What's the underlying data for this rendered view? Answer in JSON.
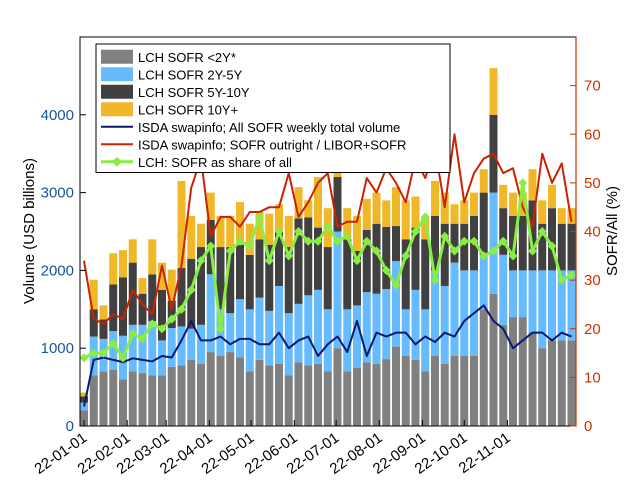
{
  "chart_data": {
    "type": "bar",
    "stacked": true,
    "x_tick_labels": [
      "22-01-01",
      "22-02-01",
      "22-03-01",
      "22-04-01",
      "22-05-01",
      "22-06-01",
      "22-07-01",
      "22-08-01",
      "22-09-01",
      "22-10-01",
      "22-11-01"
    ],
    "x_tick_index": [
      0,
      4.43,
      8.43,
      12.86,
      17.14,
      21.57,
      25.86,
      30.29,
      34.71,
      39.0,
      43.43
    ],
    "ylabel_left": "Volume (USD billions)",
    "ylabel_right": "SOFR/All (%)",
    "ylim_left": [
      0,
      5000
    ],
    "yticks_left": [
      0,
      1000,
      2000,
      3000,
      4000
    ],
    "ylim_right": [
      0,
      80
    ],
    "yticks_right": [
      0,
      10,
      20,
      30,
      40,
      50,
      60,
      70
    ],
    "colors": {
      "lt2y": "#808080",
      "y2_5": "#66bbff",
      "y5_10": "#404040",
      "y10p": "#f0b828",
      "weekly_total": "#0a1a6e",
      "outright_share": "#cc2200",
      "lch_share": "#88ee44",
      "left_axis": "#1a55a0",
      "right_axis": "#cc3300"
    },
    "series": [
      {
        "name": "LCH SOFR <2Y*",
        "color_key": "lt2y",
        "kind": "bar",
        "values": [
          200,
          650,
          700,
          720,
          600,
          700,
          680,
          650,
          650,
          760,
          780,
          850,
          800,
          950,
          900,
          950,
          880,
          700,
          850,
          780,
          800,
          650,
          820,
          780,
          800,
          700,
          1000,
          700,
          750,
          820,
          800,
          860,
          1020,
          900,
          850,
          700,
          900,
          800,
          900,
          900,
          900,
          1500,
          1700,
          1300,
          1400,
          1400,
          1200,
          1000,
          1100,
          1100,
          1100
        ]
      },
      {
        "name": "LCH SOFR 2Y-5Y",
        "color_key": "y2_5",
        "kind": "bar",
        "values": [
          100,
          500,
          420,
          500,
          560,
          600,
          620,
          700,
          450,
          500,
          500,
          400,
          500,
          1000,
          600,
          500,
          750,
          800,
          800,
          700,
          1000,
          800,
          750,
          900,
          950,
          800,
          1500,
          800,
          800,
          900,
          900,
          900,
          1100,
          600,
          900,
          800,
          1100,
          1000,
          1200,
          1100,
          1100,
          700,
          1300,
          900,
          600,
          600,
          800,
          1000,
          900,
          900,
          900
        ]
      },
      {
        "name": "LCH SOFR 5Y-10Y",
        "color_key": "y5_10",
        "kind": "bar",
        "values": [
          80,
          350,
          250,
          600,
          750,
          800,
          400,
          600,
          650,
          350,
          750,
          900,
          1000,
          700,
          800,
          850,
          700,
          700,
          750,
          850,
          700,
          850,
          1100,
          1000,
          800,
          800,
          700,
          900,
          700,
          800,
          900,
          800,
          450,
          900,
          800,
          900,
          700,
          800,
          500,
          600,
          700,
          800,
          1000,
          600,
          700,
          700,
          900,
          600,
          800,
          600,
          600
        ]
      },
      {
        "name": "LCH SOFR 10Y+",
        "color_key": "y10p",
        "kind": "bar",
        "values": [
          50,
          380,
          180,
          400,
          350,
          300,
          200,
          450,
          350,
          400,
          1120,
          550,
          300,
          350,
          400,
          400,
          550,
          400,
          350,
          400,
          350,
          400,
          400,
          220,
          650,
          500,
          200,
          400,
          450,
          400,
          400,
          340,
          500,
          500,
          400,
          300,
          450,
          400,
          250,
          300,
          300,
          300,
          600,
          300,
          300,
          300,
          400,
          300,
          300,
          200,
          200
        ]
      },
      {
        "name": "ISDA swapinfo; All SOFR weekly total volume",
        "color_key": "weekly_total",
        "kind": "line",
        "axis": "left",
        "values": [
          250,
          850,
          880,
          850,
          820,
          870,
          850,
          830,
          900,
          880,
          1100,
          1350,
          1100,
          1100,
          1150,
          1050,
          1120,
          1120,
          1050,
          1050,
          1200,
          1000,
          1100,
          1150,
          900,
          1050,
          1150,
          950,
          1350,
          900,
          1200,
          1150,
          1200,
          1200,
          1050,
          1150,
          1080,
          1200,
          1150,
          1350,
          1450,
          1550,
          1350,
          1250,
          1000,
          1100,
          1200,
          1200,
          1100,
          1200,
          1150
        ]
      },
      {
        "name": "ISDA swapinfo; SOFR outright / LIBOR+SOFR",
        "color_key": "outright_share",
        "kind": "line",
        "axis": "right",
        "values": [
          34,
          22,
          21,
          23,
          22,
          28,
          25,
          23,
          33,
          24,
          33,
          49,
          55,
          39,
          43,
          43,
          41,
          44,
          44,
          45,
          45,
          52,
          43,
          46,
          50,
          52,
          41,
          42,
          42,
          51,
          48,
          53,
          50,
          46,
          55,
          51,
          57,
          45,
          60,
          46,
          52,
          55,
          56,
          52,
          53,
          45,
          41,
          56,
          50,
          54,
          42
        ]
      },
      {
        "name": "LCH: SOFR as share of all",
        "color_key": "lch_share",
        "kind": "line",
        "axis": "right",
        "marker": "diamond",
        "values": [
          14,
          15,
          15,
          17,
          14,
          19,
          18,
          21,
          20,
          22,
          24,
          28,
          34,
          37,
          20,
          36,
          38,
          37,
          43,
          34,
          40,
          35,
          40,
          38,
          38,
          41,
          38,
          39,
          34,
          38,
          36,
          32,
          29,
          35,
          40,
          43,
          30,
          39,
          36,
          38,
          38,
          35,
          36,
          38,
          35,
          50,
          36,
          40,
          37,
          30,
          31
        ]
      }
    ]
  }
}
